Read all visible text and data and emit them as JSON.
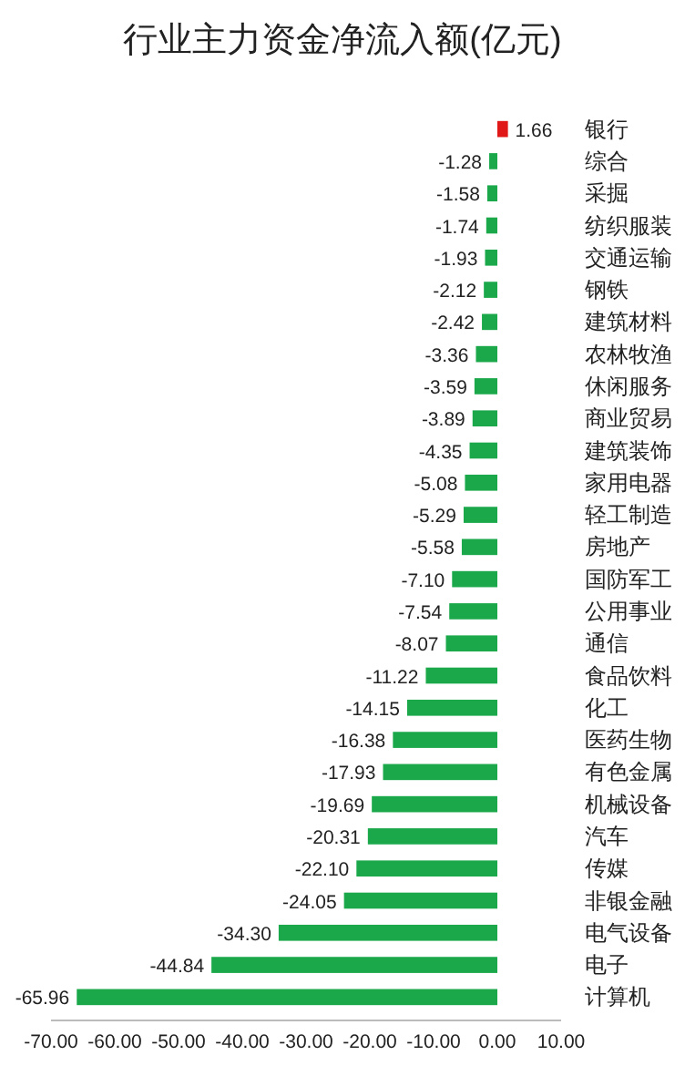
{
  "chart_data": {
    "type": "bar",
    "orientation": "horizontal",
    "title": "行业主力资金净流入额(亿元)",
    "categories": [
      "银行",
      "综合",
      "采掘",
      "纺织服装",
      "交通运输",
      "钢铁",
      "建筑材料",
      "农林牧渔",
      "休闲服务",
      "商业贸易",
      "建筑装饰",
      "家用电器",
      "轻工制造",
      "房地产",
      "国防军工",
      "公用事业",
      "通信",
      "食品饮料",
      "化工",
      "医药生物",
      "有色金属",
      "机械设备",
      "汽车",
      "传媒",
      "非银金融",
      "电气设备",
      "电子",
      "计算机"
    ],
    "values": [
      1.66,
      -1.28,
      -1.58,
      -1.74,
      -1.93,
      -2.12,
      -2.42,
      -3.36,
      -3.59,
      -3.89,
      -4.35,
      -5.08,
      -5.29,
      -5.58,
      -7.1,
      -7.54,
      -8.07,
      -11.22,
      -14.15,
      -16.38,
      -17.93,
      -19.69,
      -20.31,
      -22.1,
      -24.05,
      -34.3,
      -44.84,
      -65.96
    ],
    "value_labels": [
      "1.66",
      "-1.28",
      "-1.58",
      "-1.74",
      "-1.93",
      "-2.12",
      "-2.42",
      "-3.36",
      "-3.59",
      "-3.89",
      "-4.35",
      "-5.08",
      "-5.29",
      "-5.58",
      "-7.10",
      "-7.54",
      "-8.07",
      "-11.22",
      "-14.15",
      "-16.38",
      "-17.93",
      "-19.69",
      "-20.31",
      "-22.10",
      "-24.05",
      "-34.30",
      "-44.84",
      "-65.96"
    ],
    "colors": [
      "#e01818",
      "#1aa84a",
      "#1aa84a",
      "#1aa84a",
      "#1aa84a",
      "#1aa84a",
      "#1aa84a",
      "#1aa84a",
      "#1aa84a",
      "#1aa84a",
      "#1aa84a",
      "#1aa84a",
      "#1aa84a",
      "#1aa84a",
      "#1aa84a",
      "#1aa84a",
      "#1aa84a",
      "#1aa84a",
      "#1aa84a",
      "#1aa84a",
      "#1aa84a",
      "#1aa84a",
      "#1aa84a",
      "#1aa84a",
      "#1aa84a",
      "#1aa84a",
      "#1aa84a",
      "#1aa84a"
    ],
    "xlim": [
      -70,
      10
    ],
    "xticks": [
      {
        "value": -70,
        "label": "-70.00"
      },
      {
        "value": -60,
        "label": "-60.00"
      },
      {
        "value": -50,
        "label": "-50.00"
      },
      {
        "value": -40,
        "label": "-40.00"
      },
      {
        "value": -30,
        "label": "-30.00"
      },
      {
        "value": -20,
        "label": "-20.00"
      },
      {
        "value": -10,
        "label": "-10.00"
      },
      {
        "value": 0,
        "label": "0.00"
      },
      {
        "value": 10,
        "label": "10.00"
      }
    ],
    "grid": false
  }
}
